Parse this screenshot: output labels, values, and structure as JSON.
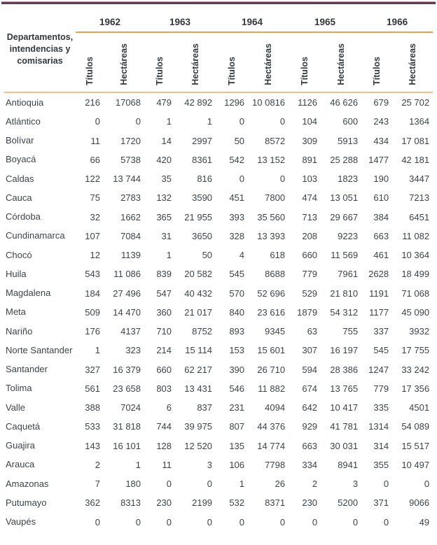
{
  "table": {
    "corner_header": "Departamentos, intendencias y comisarias",
    "years": [
      "1962",
      "1963",
      "1964",
      "1965",
      "1966"
    ],
    "subheaders": {
      "titulos": "Títulos",
      "hectareas": "Hectáreas"
    },
    "rows": [
      {
        "name": "Antioquia",
        "values": [
          "216",
          "17068",
          "479",
          "42 892",
          "1296",
          "10 0816",
          "1126",
          "46 626",
          "679",
          "25 702"
        ]
      },
      {
        "name": "Atlántico",
        "values": [
          "0",
          "0",
          "1",
          "1",
          "0",
          "0",
          "104",
          "600",
          "243",
          "1364"
        ]
      },
      {
        "name": "Bolívar",
        "values": [
          "11",
          "1720",
          "14",
          "2997",
          "50",
          "8572",
          "309",
          "5913",
          "434",
          "17 081"
        ]
      },
      {
        "name": "Boyacá",
        "values": [
          "66",
          "5738",
          "420",
          "8361",
          "542",
          "13 152",
          "891",
          "25 288",
          "1477",
          "42 181"
        ]
      },
      {
        "name": "Caldas",
        "values": [
          "122",
          "13 744",
          "35",
          "816",
          "0",
          "0",
          "103",
          "1823",
          "190",
          "3447"
        ]
      },
      {
        "name": "Cauca",
        "values": [
          "75",
          "2783",
          "132",
          "3590",
          "451",
          "7800",
          "474",
          "13 051",
          "610",
          "7213"
        ]
      },
      {
        "name": "Córdoba",
        "values": [
          "32",
          "1662",
          "365",
          "21 955",
          "393",
          "35 560",
          "713",
          "29 667",
          "384",
          "6451"
        ]
      },
      {
        "name": "Cundinamarca",
        "values": [
          "107",
          "7084",
          "31",
          "3650",
          "328",
          "13 393",
          "208",
          "9223",
          "663",
          "11 082"
        ]
      },
      {
        "name": "Chocó",
        "values": [
          "12",
          "1139",
          "1",
          "50",
          "4",
          "618",
          "660",
          "11 569",
          "461",
          "10 364"
        ]
      },
      {
        "name": "Huila",
        "values": [
          "543",
          "11 086",
          "839",
          "20 582",
          "545",
          "8688",
          "779",
          "7961",
          "2628",
          "18 499"
        ]
      },
      {
        "name": "Magdalena",
        "values": [
          "184",
          "27 496",
          "547",
          "40 432",
          "570",
          "52 696",
          "529",
          "21 810",
          "1191",
          "71 068"
        ]
      },
      {
        "name": "Meta",
        "values": [
          "509",
          "14 470",
          "360",
          "21 017",
          "840",
          "23 616",
          "1879",
          "54 312",
          "1177",
          "45 090"
        ]
      },
      {
        "name": "Nariño",
        "values": [
          "176",
          "4137",
          "710",
          "8752",
          "893",
          "9345",
          "63",
          "755",
          "337",
          "3932"
        ]
      },
      {
        "name": "Norte Santander",
        "values": [
          "1",
          "323",
          "214",
          "15 114",
          "153",
          "15 601",
          "307",
          "16 197",
          "545",
          "17 755"
        ]
      },
      {
        "name": "Santander",
        "values": [
          "327",
          "16 379",
          "660",
          "62 217",
          "390",
          "26 710",
          "594",
          "28 386",
          "1247",
          "33 242"
        ]
      },
      {
        "name": "Tolima",
        "values": [
          "561",
          "23 658",
          "803",
          "13 431",
          "546",
          "11 882",
          "674",
          "13 765",
          "779",
          "17 356"
        ]
      },
      {
        "name": "Valle",
        "values": [
          "388",
          "7024",
          "6",
          "837",
          "231",
          "4094",
          "642",
          "10 417",
          "335",
          "4501"
        ]
      },
      {
        "name": "Caquetá",
        "values": [
          "533",
          "31 818",
          "744",
          "39 975",
          "807",
          "44 376",
          "929",
          "41 781",
          "1314",
          "54 089"
        ]
      },
      {
        "name": "Guajira",
        "values": [
          "143",
          "16 101",
          "128",
          "12 520",
          "135",
          "14 774",
          "663",
          "30 031",
          "314",
          "15 517"
        ]
      },
      {
        "name": "Arauca",
        "values": [
          "2",
          "1",
          "11",
          "3",
          "106",
          "7798",
          "334",
          "8941",
          "355",
          "10 497"
        ]
      },
      {
        "name": "Amazonas",
        "values": [
          "7",
          "180",
          "0",
          "0",
          "1",
          "26",
          "2",
          "3",
          "0",
          "0"
        ]
      },
      {
        "name": "Putumayo",
        "values": [
          "362",
          "8313",
          "230",
          "2199",
          "532",
          "8371",
          "230",
          "5200",
          "371",
          "9066"
        ]
      },
      {
        "name": "Vaupés",
        "values": [
          "0",
          "0",
          "0",
          "0",
          "0",
          "0",
          "0",
          "0",
          "0",
          "49"
        ]
      }
    ]
  },
  "colors": {
    "top_rule_dark": "#5F3B54",
    "top_rule_light": "#B395A9",
    "year_underline": "#EE9D4F",
    "header_underline": "#EFC089",
    "bottom_rule": "#6E5265",
    "text": "#3E4449"
  }
}
